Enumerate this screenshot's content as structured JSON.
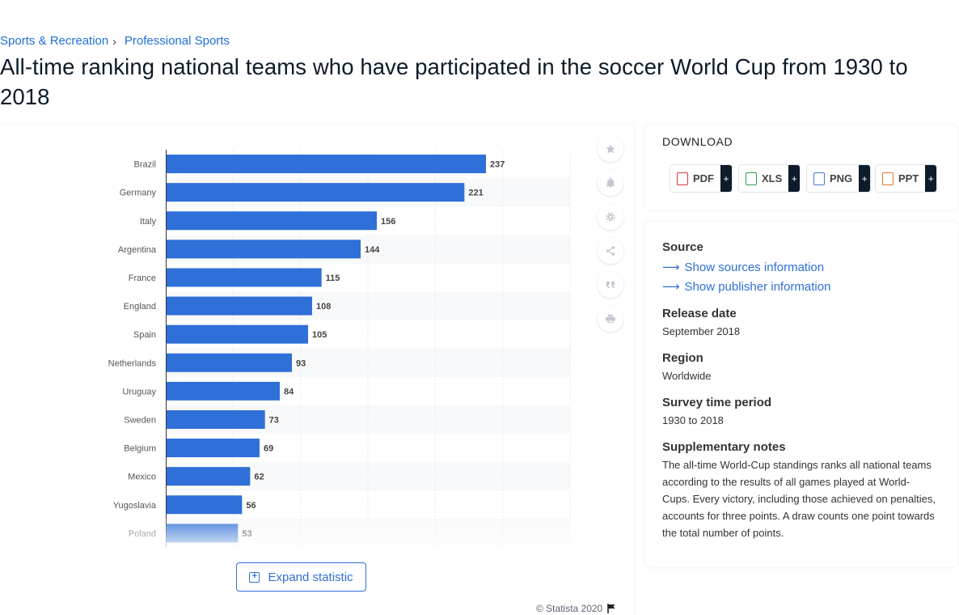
{
  "breadcrumb": {
    "items": [
      "Sports & Recreation",
      "Professional Sports"
    ],
    "separator": "›"
  },
  "page_title": "All-time ranking national teams who have participated in the soccer World Cup from 1930 to 2018",
  "chart_data": {
    "type": "bar",
    "orientation": "horizontal",
    "title": "",
    "xlabel": "",
    "ylabel": "",
    "categories": [
      "Brazil",
      "Germany",
      "Italy",
      "Argentina",
      "France",
      "England",
      "Spain",
      "Netherlands",
      "Uruguay",
      "Sweden",
      "Belgium",
      "Mexico",
      "Yugoslavia",
      "Poland"
    ],
    "values": [
      237,
      221,
      156,
      144,
      115,
      108,
      105,
      93,
      84,
      73,
      69,
      62,
      56,
      53
    ],
    "xlim": [
      0,
      300
    ],
    "grid": true,
    "bar_color": "#2f6fd8",
    "data_labels": true
  },
  "tools": [
    "star-icon",
    "bell-icon",
    "gear-icon",
    "share-icon",
    "quote-icon",
    "print-icon"
  ],
  "expand_label": "Expand statistic",
  "copyright": "© Statista 2020",
  "download": {
    "title": "DOWNLOAD",
    "buttons": [
      {
        "label": "PDF",
        "plus": "+",
        "color": "#d9363e"
      },
      {
        "label": "XLS",
        "plus": "+",
        "color": "#2e9e4f"
      },
      {
        "label": "PNG",
        "plus": "+",
        "color": "#4a7bd0"
      },
      {
        "label": "PPT",
        "plus": "+",
        "color": "#e0762a"
      }
    ]
  },
  "meta": {
    "source_label": "Source",
    "show_sources": "Show sources information",
    "show_publisher": "Show publisher information",
    "release_label": "Release date",
    "release_value": "September 2018",
    "region_label": "Region",
    "region_value": "Worldwide",
    "survey_label": "Survey time period",
    "survey_value": "1930 to 2018",
    "notes_label": "Supplementary notes",
    "notes_value": "The all-time World-Cup standings ranks all national teams according to the results of all games played at World-Cups. Every victory, including those achieved on penalties, accounts for three points. A draw counts one point towards the total number of points."
  }
}
